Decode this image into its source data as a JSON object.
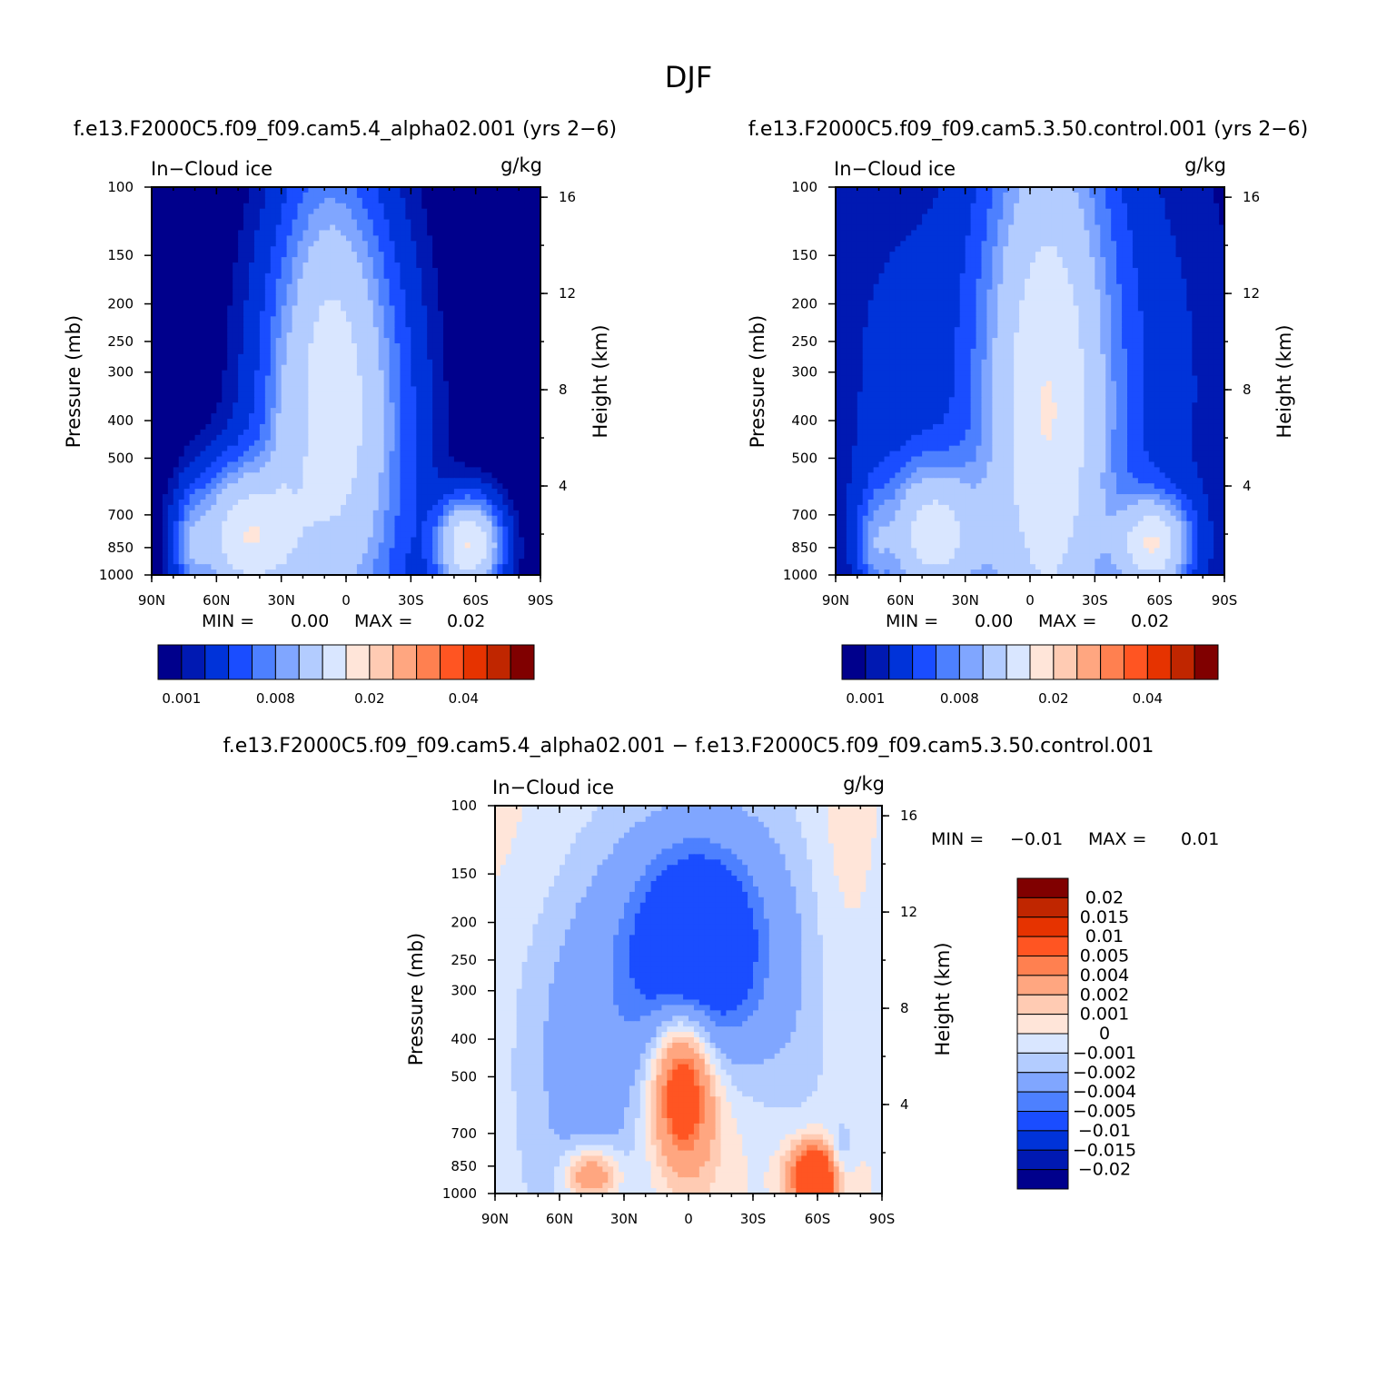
{
  "figure": {
    "season_title": "DJF",
    "colors": {
      "field": [
        "#00008c",
        "#0019b2",
        "#0033d9",
        "#1a4dff",
        "#4d80ff",
        "#80a6ff",
        "#b3ccff",
        "#d9e6ff",
        "#ffe5d9",
        "#ffcbb3",
        "#ffa680",
        "#ff8050",
        "#ff5522",
        "#e63300",
        "#c02600",
        "#800000"
      ],
      "diff": [
        "#00008c",
        "#0019b2",
        "#0033d9",
        "#1a4dff",
        "#4d80ff",
        "#80a6ff",
        "#b3ccff",
        "#d9e6ff",
        "#ffe5d9",
        "#ffcbb3",
        "#ffa680",
        "#ff8050",
        "#ff5522",
        "#e63300",
        "#c02600",
        "#800000"
      ]
    }
  },
  "chart_data": [
    {
      "type": "heatmap",
      "id": "test",
      "case_title": "f.e13.F2000C5.f09_f09.cam5.4_alpha02.001  (yrs  2−6)",
      "title": "In−Cloud  ice",
      "units": "g/kg",
      "ylabel": "Pressure  (mb)",
      "y2label": "Height  (km)",
      "x_ticks": [
        "90N",
        "60N",
        "30N",
        "0",
        "30S",
        "60S",
        "90S"
      ],
      "y_ticks": [
        "100",
        "150",
        "200",
        "250",
        "300",
        "400",
        "500",
        "700",
        "850",
        "1000"
      ],
      "y2_ticks": [
        "4",
        "8",
        "12",
        "16"
      ],
      "xlim": [
        90,
        -90
      ],
      "ylim": [
        1000,
        100
      ],
      "stats": {
        "min_label": "MIN  =",
        "min": "0.00",
        "max_label": "MAX  =",
        "max": "0.02"
      },
      "colorbar_labels": [
        "0.001",
        "0.008",
        "0.02",
        "0.04"
      ],
      "levels": [
        0.001,
        0.002,
        0.004,
        0.006,
        0.008,
        0.01,
        0.015,
        0.02,
        0.025,
        0.03,
        0.035,
        0.04,
        0.045,
        0.05,
        0.06
      ],
      "features": [
        {
          "lat": 5,
          "p": 430,
          "dlat": 22,
          "dlogp": 0.4,
          "amp": 0.016
        },
        {
          "lat": 8,
          "p": 190,
          "dlat": 14,
          "dlogp": 0.3,
          "amp": 0.004
        },
        {
          "lat": 47,
          "p": 800,
          "dlat": 16,
          "dlogp": 0.12,
          "amp": 0.018
        },
        {
          "lat": 72,
          "p": 850,
          "dlat": 5,
          "dlogp": 0.1,
          "amp": 0.005
        },
        {
          "lat": -57,
          "p": 840,
          "dlat": 10,
          "dlogp": 0.08,
          "amp": 0.02
        },
        {
          "lat": 30,
          "p": 470,
          "dlat": 3,
          "dlogp": 0.2,
          "amp": 0.0015
        }
      ]
    },
    {
      "type": "heatmap",
      "id": "control",
      "case_title": "f.e13.F2000C5.f09_f09.cam5.3.50.control.001  (yrs  2−6)",
      "title": "In−Cloud  ice",
      "units": "g/kg",
      "ylabel": "Pressure  (mb)",
      "y2label": "Height  (km)",
      "x_ticks": [
        "90N",
        "60N",
        "30N",
        "0",
        "30S",
        "60S",
        "90S"
      ],
      "y_ticks": [
        "100",
        "150",
        "200",
        "250",
        "300",
        "400",
        "500",
        "700",
        "850",
        "1000"
      ],
      "y2_ticks": [
        "4",
        "8",
        "12",
        "16"
      ],
      "xlim": [
        90,
        -90
      ],
      "ylim": [
        1000,
        100
      ],
      "stats": {
        "min_label": "MIN  =",
        "min": "0.00",
        "max_label": "MAX  =",
        "max": "0.02"
      },
      "colorbar_labels": [
        "0.001",
        "0.008",
        "0.02",
        "0.04"
      ],
      "levels": [
        0.001,
        0.002,
        0.004,
        0.006,
        0.008,
        0.01,
        0.015,
        0.02,
        0.025,
        0.03,
        0.035,
        0.04,
        0.045,
        0.05,
        0.06
      ],
      "features": [
        {
          "lat": -8,
          "p": 380,
          "dlat": 20,
          "dlogp": 0.55,
          "amp": 0.019
        },
        {
          "lat": 55,
          "p": 330,
          "dlat": 35,
          "dlogp": 0.55,
          "amp": 0.0025
        },
        {
          "lat": -55,
          "p": 330,
          "dlat": 30,
          "dlogp": 0.55,
          "amp": 0.0025
        },
        {
          "lat": 45,
          "p": 790,
          "dlat": 15,
          "dlogp": 0.12,
          "amp": 0.016
        },
        {
          "lat": 72,
          "p": 840,
          "dlat": 5,
          "dlogp": 0.1,
          "amp": 0.005
        },
        {
          "lat": -57,
          "p": 835,
          "dlat": 11,
          "dlogp": 0.08,
          "amp": 0.018
        }
      ]
    },
    {
      "type": "heatmap",
      "id": "diff",
      "case_title": "f.e13.F2000C5.f09_f09.cam5.4_alpha02.001  −  f.e13.F2000C5.f09_f09.cam5.3.50.control.001",
      "title": "In−Cloud  ice",
      "units": "g/kg",
      "ylabel": "Pressure  (mb)",
      "y2label": "Height  (km)",
      "x_ticks": [
        "90N",
        "60N",
        "30N",
        "0",
        "30S",
        "60S",
        "90S"
      ],
      "y_ticks": [
        "100",
        "150",
        "200",
        "250",
        "300",
        "400",
        "500",
        "700",
        "850",
        "1000"
      ],
      "y2_ticks": [
        "4",
        "8",
        "12",
        "16"
      ],
      "xlim": [
        90,
        -90
      ],
      "ylim": [
        1000,
        100
      ],
      "stats": {
        "min_label": "MIN  =",
        "min": "−0.01",
        "max_label": "MAX  =",
        "max": "0.01"
      },
      "colorbar_labels": [
        "0.02",
        "0.015",
        "0.01",
        "0.005",
        "0.004",
        "0.002",
        "0.001",
        "0",
        "−0.001",
        "−0.002",
        "−0.004",
        "−0.005",
        "−0.01",
        "−0.015",
        "−0.02"
      ],
      "levels": [
        -0.02,
        -0.015,
        -0.01,
        -0.005,
        -0.004,
        -0.002,
        -0.001,
        0,
        0.001,
        0.002,
        0.004,
        0.005,
        0.01,
        0.015,
        0.02
      ],
      "features": [
        {
          "lat": -3,
          "p": 240,
          "dlat": 22,
          "dlogp": 0.22,
          "amp": -0.0085
        },
        {
          "lat": 45,
          "p": 420,
          "dlat": 25,
          "dlogp": 0.45,
          "amp": -0.003
        },
        {
          "lat": -40,
          "p": 320,
          "dlat": 25,
          "dlogp": 0.4,
          "amp": -0.002
        },
        {
          "lat": 3,
          "p": 520,
          "dlat": 10,
          "dlogp": 0.14,
          "amp": 0.0085
        },
        {
          "lat": -10,
          "p": 560,
          "dlat": 25,
          "dlogp": 0.25,
          "amp": 0.002
        },
        {
          "lat": -60,
          "p": 900,
          "dlat": 9,
          "dlogp": 0.06,
          "amp": 0.011
        },
        {
          "lat": 45,
          "p": 900,
          "dlat": 9,
          "dlogp": 0.05,
          "amp": 0.0055
        },
        {
          "lat": -70,
          "p": 840,
          "dlat": 5,
          "dlogp": 0.06,
          "amp": -0.004
        },
        {
          "lat": 65,
          "p": 120,
          "dlat": 30,
          "dlogp": 0.25,
          "amp": 0.0006
        },
        {
          "lat": -70,
          "p": 140,
          "dlat": 10,
          "dlogp": 0.3,
          "amp": 0.0008
        }
      ]
    }
  ]
}
